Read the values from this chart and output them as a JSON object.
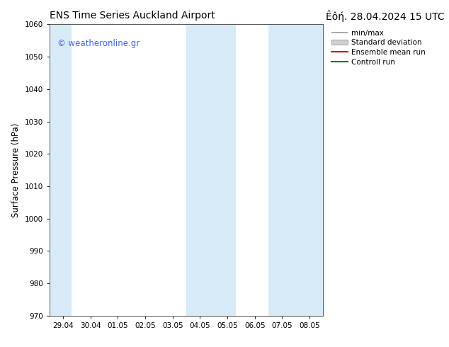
{
  "title_left": "ENS Time Series Auckland Airport",
  "title_right": "Êôή. 28.04.2024 15 UTC",
  "ylabel": "Surface Pressure (hPa)",
  "ylim": [
    970,
    1060
  ],
  "yticks": [
    970,
    980,
    990,
    1000,
    1010,
    1020,
    1030,
    1040,
    1050,
    1060
  ],
  "x_labels": [
    "29.04",
    "30.04",
    "01.05",
    "02.05",
    "03.05",
    "04.05",
    "05.05",
    "06.05",
    "07.05",
    "08.05"
  ],
  "x_values": [
    0,
    1,
    2,
    3,
    4,
    5,
    6,
    7,
    8,
    9
  ],
  "xlim": [
    -0.5,
    9.5
  ],
  "shaded_bands": [
    {
      "x_start": -0.5,
      "x_end": 0.3,
      "color": "#d6eaf8"
    },
    {
      "x_start": 4.5,
      "x_end": 6.3,
      "color": "#d6eaf8"
    },
    {
      "x_start": 7.5,
      "x_end": 9.5,
      "color": "#d6eaf8"
    }
  ],
  "watermark_text": "© weatheronline.gr",
  "watermark_color": "#4169E1",
  "background_color": "#ffffff",
  "plot_bg_color": "#ffffff",
  "title_fontsize": 10,
  "tick_fontsize": 7.5,
  "ylabel_fontsize": 8.5,
  "watermark_fontsize": 8.5,
  "legend_fontsize": 7.5
}
